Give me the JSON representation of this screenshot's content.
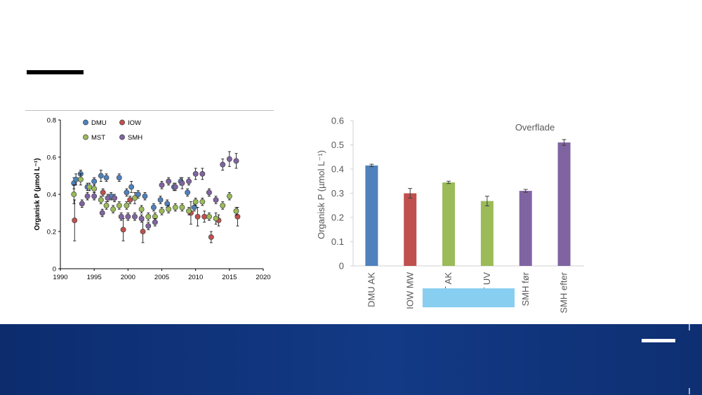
{
  "chart_data": [
    {
      "type": "scatter",
      "title": "",
      "xlabel": "",
      "ylabel": "Organisk P (µmol L⁻¹)",
      "xlim": [
        1990,
        2020
      ],
      "ylim": [
        0,
        0.8
      ],
      "xticks": [
        1990,
        1995,
        2000,
        2005,
        2010,
        2015,
        2020
      ],
      "yticks": [
        0,
        0.2,
        0.4,
        0.6,
        0.8
      ],
      "ytick_labels": [
        "0",
        "0.2",
        "0.4",
        "0.6",
        "0.8"
      ],
      "legend_position": "top-left",
      "series": [
        {
          "name": "DMU",
          "color": "#4f81bd",
          "points": [
            {
              "x": 1992.0,
              "y": 0.46,
              "err": 0.03
            },
            {
              "x": 1992.3,
              "y": 0.48,
              "err": 0.03
            },
            {
              "x": 1993.0,
              "y": 0.51,
              "err": 0.02
            },
            {
              "x": 1994.0,
              "y": 0.44,
              "err": 0.02
            },
            {
              "x": 1995.0,
              "y": 0.47,
              "err": 0.02
            },
            {
              "x": 1996.0,
              "y": 0.5,
              "err": 0.03
            },
            {
              "x": 1996.8,
              "y": 0.49,
              "err": 0.02
            },
            {
              "x": 1997.5,
              "y": 0.39,
              "err": 0.02
            },
            {
              "x": 1998.7,
              "y": 0.49,
              "err": 0.02
            },
            {
              "x": 1999.8,
              "y": 0.41,
              "err": 0.02
            },
            {
              "x": 2000.5,
              "y": 0.44,
              "err": 0.03
            },
            {
              "x": 2001.5,
              "y": 0.4,
              "err": 0.02
            },
            {
              "x": 2002.5,
              "y": 0.39,
              "err": 0.02
            },
            {
              "x": 2003.8,
              "y": 0.33,
              "err": 0.02
            },
            {
              "x": 2004.8,
              "y": 0.37,
              "err": 0.02
            },
            {
              "x": 2005.8,
              "y": 0.35,
              "err": 0.02
            },
            {
              "x": 2006.8,
              "y": 0.44,
              "err": 0.02
            },
            {
              "x": 2007.8,
              "y": 0.47,
              "err": 0.02
            },
            {
              "x": 2008.8,
              "y": 0.41,
              "err": 0.02
            },
            {
              "x": 2009.8,
              "y": 0.33,
              "err": 0.02
            }
          ]
        },
        {
          "name": "IOW",
          "color": "#c0504d",
          "points": [
            {
              "x": 1992.1,
              "y": 0.26,
              "err": 0.11
            },
            {
              "x": 1996.3,
              "y": 0.41,
              "err": 0.02
            },
            {
              "x": 1999.3,
              "y": 0.21,
              "err": 0.06
            },
            {
              "x": 2000.3,
              "y": 0.37,
              "err": 0.02
            },
            {
              "x": 2002.2,
              "y": 0.2,
              "err": 0.06
            },
            {
              "x": 2009.3,
              "y": 0.3,
              "err": 0.06
            },
            {
              "x": 2010.3,
              "y": 0.28,
              "err": 0.05
            },
            {
              "x": 2011.3,
              "y": 0.28,
              "err": 0.03
            },
            {
              "x": 2012.3,
              "y": 0.17,
              "err": 0.03
            },
            {
              "x": 2013.4,
              "y": 0.26,
              "err": 0.03
            },
            {
              "x": 2016.2,
              "y": 0.28,
              "err": 0.05
            }
          ]
        },
        {
          "name": "MST",
          "color": "#9bbb59",
          "points": [
            {
              "x": 1992.0,
              "y": 0.4,
              "err": 0.05
            },
            {
              "x": 1993.0,
              "y": 0.48,
              "err": 0.03
            },
            {
              "x": 1994.3,
              "y": 0.44,
              "err": 0.02
            },
            {
              "x": 1995.0,
              "y": 0.43,
              "err": 0.02
            },
            {
              "x": 1996.0,
              "y": 0.37,
              "err": 0.02
            },
            {
              "x": 1996.8,
              "y": 0.34,
              "err": 0.02
            },
            {
              "x": 1997.8,
              "y": 0.32,
              "err": 0.02
            },
            {
              "x": 1998.7,
              "y": 0.34,
              "err": 0.02
            },
            {
              "x": 1999.8,
              "y": 0.34,
              "err": 0.02
            },
            {
              "x": 2001.0,
              "y": 0.38,
              "err": 0.03
            },
            {
              "x": 2002.0,
              "y": 0.32,
              "err": 0.02
            },
            {
              "x": 2003.0,
              "y": 0.28,
              "err": 0.02
            },
            {
              "x": 2004.0,
              "y": 0.28,
              "err": 0.02
            },
            {
              "x": 2005.0,
              "y": 0.31,
              "err": 0.02
            },
            {
              "x": 2006.0,
              "y": 0.32,
              "err": 0.02
            },
            {
              "x": 2007.0,
              "y": 0.33,
              "err": 0.02
            },
            {
              "x": 2008.0,
              "y": 0.33,
              "err": 0.02
            },
            {
              "x": 2009.0,
              "y": 0.31,
              "err": 0.02
            },
            {
              "x": 2010.0,
              "y": 0.36,
              "err": 0.02
            },
            {
              "x": 2011.0,
              "y": 0.36,
              "err": 0.02
            },
            {
              "x": 2012.0,
              "y": 0.28,
              "err": 0.02
            },
            {
              "x": 2013.0,
              "y": 0.27,
              "err": 0.03
            },
            {
              "x": 2014.0,
              "y": 0.34,
              "err": 0.02
            },
            {
              "x": 2015.0,
              "y": 0.39,
              "err": 0.02
            },
            {
              "x": 2016.0,
              "y": 0.31,
              "err": 0.02
            }
          ]
        },
        {
          "name": "SMH",
          "color": "#8064a2",
          "points": [
            {
              "x": 1993.2,
              "y": 0.35,
              "err": 0.02
            },
            {
              "x": 1994.0,
              "y": 0.39,
              "err": 0.02
            },
            {
              "x": 1995.0,
              "y": 0.39,
              "err": 0.02
            },
            {
              "x": 1996.2,
              "y": 0.3,
              "err": 0.02
            },
            {
              "x": 1997.0,
              "y": 0.38,
              "err": 0.02
            },
            {
              "x": 1998.0,
              "y": 0.38,
              "err": 0.02
            },
            {
              "x": 1999.0,
              "y": 0.28,
              "err": 0.02
            },
            {
              "x": 2000.0,
              "y": 0.28,
              "err": 0.02
            },
            {
              "x": 2001.0,
              "y": 0.28,
              "err": 0.02
            },
            {
              "x": 2002.0,
              "y": 0.27,
              "err": 0.02
            },
            {
              "x": 2003.0,
              "y": 0.23,
              "err": 0.02
            },
            {
              "x": 2004.0,
              "y": 0.25,
              "err": 0.02
            },
            {
              "x": 2005.0,
              "y": 0.45,
              "err": 0.02
            },
            {
              "x": 2006.0,
              "y": 0.47,
              "err": 0.02
            },
            {
              "x": 2007.0,
              "y": 0.44,
              "err": 0.02
            },
            {
              "x": 2008.0,
              "y": 0.46,
              "err": 0.03
            },
            {
              "x": 2009.0,
              "y": 0.47,
              "err": 0.02
            },
            {
              "x": 2010.0,
              "y": 0.51,
              "err": 0.03
            },
            {
              "x": 2011.0,
              "y": 0.51,
              "err": 0.03
            },
            {
              "x": 2012.0,
              "y": 0.41,
              "err": 0.02
            },
            {
              "x": 2013.0,
              "y": 0.37,
              "err": 0.02
            },
            {
              "x": 2014.0,
              "y": 0.56,
              "err": 0.03
            },
            {
              "x": 2015.0,
              "y": 0.59,
              "err": 0.04
            },
            {
              "x": 2016.0,
              "y": 0.58,
              "err": 0.04
            }
          ]
        }
      ]
    },
    {
      "type": "bar",
      "title": "",
      "annotation": "Overflade",
      "xlabel": "",
      "ylabel": "Organisk P (µmol L⁻¹)",
      "ylim": [
        0,
        0.6
      ],
      "yticks": [
        0,
        0.1,
        0.2,
        0.3,
        0.4,
        0.5,
        0.6
      ],
      "ytick_labels": [
        "0",
        "0.1",
        "0.2",
        "0.3",
        "0.4",
        "0.5",
        "0.6"
      ],
      "categories": [
        "DMU AK",
        "IOW MW",
        "MST AK",
        "MST UV",
        "SMH før",
        "SMH efter"
      ],
      "values": [
        0.415,
        0.3,
        0.345,
        0.268,
        0.31,
        0.51
      ],
      "errors": [
        0.005,
        0.02,
        0.005,
        0.02,
        0.006,
        0.012
      ],
      "colors": [
        "#4f81bd",
        "#c0504d",
        "#9bbb59",
        "#9bbb59",
        "#8064a2",
        "#8064a2"
      ]
    }
  ]
}
